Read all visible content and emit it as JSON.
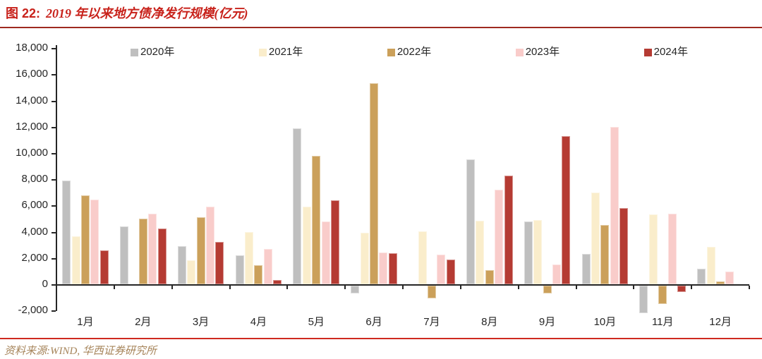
{
  "header": {
    "figure_label": "图 22:",
    "figure_title": "2019 年以来地方债净发行规模(亿元)"
  },
  "footer": {
    "source": "资料来源:WIND, 华西证券研究所"
  },
  "colors": {
    "title_red": "#C8221B",
    "divider_top": "#9E2A20",
    "divider_bottom": "#CE2A1F",
    "source_gold": "#A6845A",
    "axis_text": "#262626",
    "axis_line": "#262626"
  },
  "chart_data": {
    "type": "bar",
    "title": "2019 年以来地方债净发行规模(亿元)",
    "xlabel": "",
    "ylabel": "亿元",
    "categories": [
      "1月",
      "2月",
      "3月",
      "4月",
      "5月",
      "6月",
      "7月",
      "8月",
      "9月",
      "10月",
      "11月",
      "12月"
    ],
    "series": [
      {
        "name": "2020年",
        "color": "#BFBFBF",
        "values": [
          7900,
          4400,
          2900,
          2200,
          11900,
          -600,
          0,
          9500,
          4800,
          2300,
          -2100,
          1200
        ]
      },
      {
        "name": "2021年",
        "color": "#FAEDCB",
        "values": [
          3650,
          0,
          1850,
          4000,
          5900,
          3950,
          4050,
          4850,
          4900,
          7000,
          5300,
          2850
        ]
      },
      {
        "name": "2022年",
        "color": "#CBA05A",
        "values": [
          6800,
          5000,
          5100,
          1450,
          9800,
          15300,
          -950,
          1050,
          -600,
          4500,
          -1400,
          200
        ]
      },
      {
        "name": "2023年",
        "color": "#F9CCCA",
        "values": [
          6450,
          5350,
          5900,
          2700,
          4800,
          2400,
          2250,
          7200,
          1500,
          12000,
          5400,
          950
        ]
      },
      {
        "name": "2024年",
        "color": "#B53B33",
        "values": [
          2600,
          4250,
          3200,
          300,
          6400,
          2350,
          1900,
          8300,
          11300,
          5800,
          -500,
          null
        ]
      }
    ],
    "ylim": [
      -2000,
      18000
    ],
    "ytick_step": 2000,
    "grid": false,
    "legend_position": "top"
  }
}
